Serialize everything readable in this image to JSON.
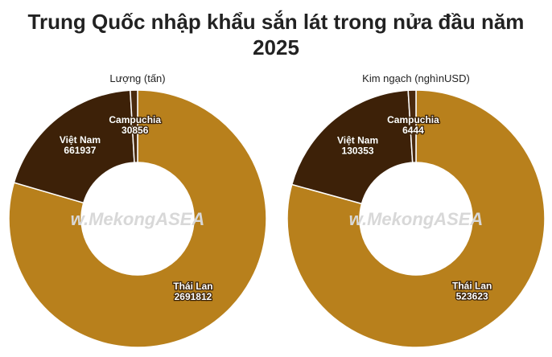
{
  "title": "Trung Quốc nhập khẩu sắn lát trong nửa đầu năm 2025",
  "watermark": "w.MekongASEA",
  "chart_data": [
    {
      "type": "donut",
      "title": "Lượng (tấn)",
      "categories": [
        "Thái Lan",
        "Việt Nam",
        "Campuchia"
      ],
      "values": [
        2691812,
        661937,
        30856
      ],
      "colors": [
        "#b8801c",
        "#3d2108",
        "#4a2a0e"
      ]
    },
    {
      "type": "donut",
      "title": "Kim ngạch (nghìnUSD)",
      "categories": [
        "Thái Lan",
        "Việt Nam",
        "Campuchia"
      ],
      "values": [
        523623,
        130353,
        6444
      ],
      "colors": [
        "#b8801c",
        "#3d2108",
        "#4a2a0e"
      ]
    }
  ]
}
